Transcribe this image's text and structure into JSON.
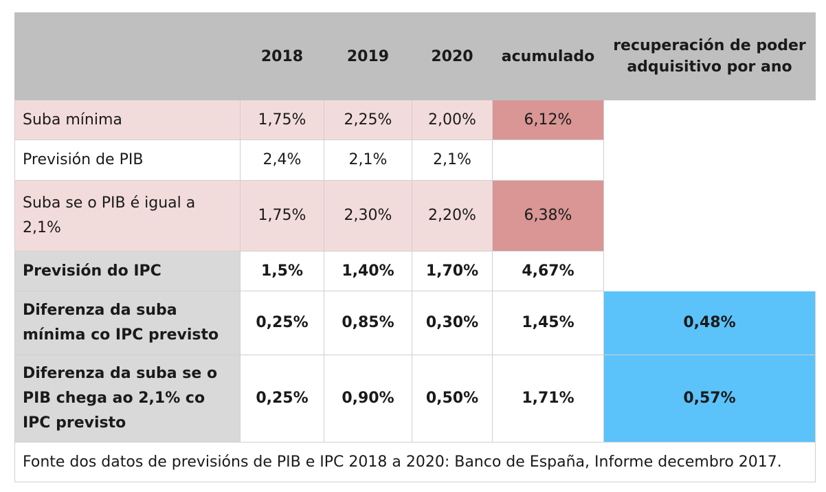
{
  "header": {
    "col0": "",
    "y2018": "2018",
    "y2019": "2019",
    "y2020": "2020",
    "acumulado": "acumulado",
    "recuperacion": "recuperación de poder adquisitivo por ano"
  },
  "rows": [
    {
      "label": "Suba mínima",
      "v2018": "1,75%",
      "v2019": "2,25%",
      "v2020": "2,00%",
      "acumulado": "6,12%",
      "recuperacion": ""
    },
    {
      "label": "Previsión de PIB",
      "v2018": "2,4%",
      "v2019": "2,1%",
      "v2020": "2,1%",
      "acumulado": "",
      "recuperacion": ""
    },
    {
      "label": "Suba se o PIB é igual a 2,1%",
      "v2018": "1,75%",
      "v2019": "2,30%",
      "v2020": "2,20%",
      "acumulado": "6,38%",
      "recuperacion": ""
    },
    {
      "label": "Previsión do IPC",
      "v2018": "1,5%",
      "v2019": "1,40%",
      "v2020": "1,70%",
      "acumulado": "4,67%",
      "recuperacion": ""
    },
    {
      "label": "Diferenza da suba mínima co IPC previsto",
      "v2018": "0,25%",
      "v2019": "0,85%",
      "v2020": "0,30%",
      "acumulado": "1,45%",
      "recuperacion": "0,48%"
    },
    {
      "label": "Diferenza da suba se o PIB chega ao 2,1% co IPC previsto",
      "v2018": "0,25%",
      "v2019": "0,90%",
      "v2020": "0,50%",
      "acumulado": "1,71%",
      "recuperacion": "0,57%"
    }
  ],
  "source": "Fonte dos datos de previsións de PIB e IPC 2018 a 2020: Banco de España, Informe decembro 2017.",
  "colors": {
    "header_bg": "#bfbfbf",
    "pink_row": "#f2dcdb",
    "pink_highlight": "#d99694",
    "grey_label": "#d9d9d9",
    "blue_highlight": "#5bc3fa"
  }
}
